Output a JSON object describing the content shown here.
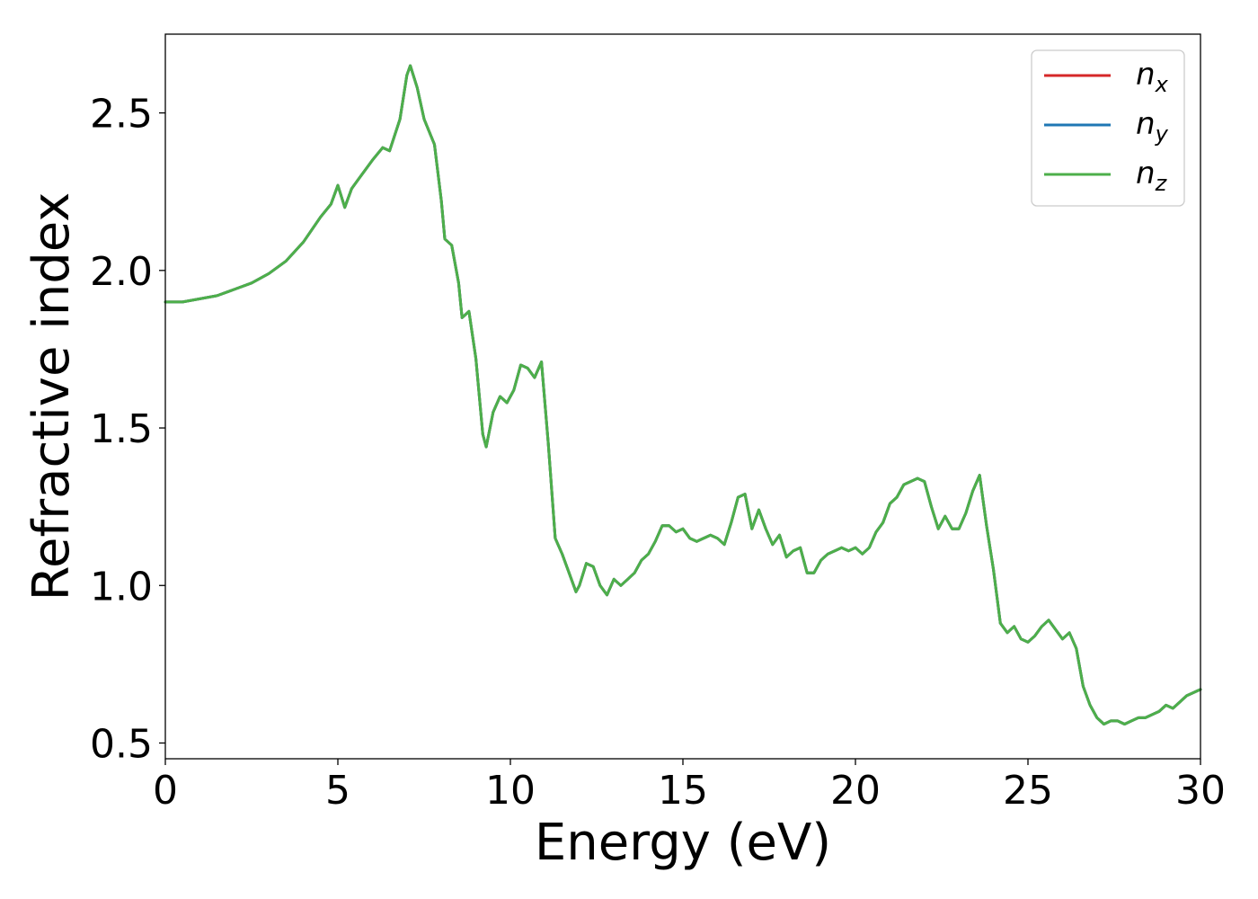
{
  "chart_data": {
    "type": "line",
    "xlabel": "Energy (eV)",
    "ylabel": "Refractive index",
    "xlim": [
      0,
      30
    ],
    "ylim": [
      0.45,
      2.75
    ],
    "xticks": [
      0,
      5,
      10,
      15,
      20,
      25,
      30
    ],
    "xtick_labels": [
      "0",
      "5",
      "10",
      "15",
      "20",
      "25",
      "30"
    ],
    "yticks": [
      0.5,
      1.0,
      1.5,
      2.0,
      2.5
    ],
    "ytick_labels": [
      "0.5",
      "1.0",
      "1.5",
      "2.0",
      "2.5"
    ],
    "grid": false,
    "legend_position": "top-right",
    "series": [
      {
        "name": "n",
        "subscript": "x",
        "color": "#d62728"
      },
      {
        "name": "n",
        "subscript": "y",
        "color": "#1f77b4"
      },
      {
        "name": "n",
        "subscript": "z",
        "color": "#4daf4a"
      }
    ],
    "x": [
      0,
      0.5,
      1,
      1.5,
      2,
      2.5,
      3,
      3.5,
      4,
      4.5,
      4.8,
      5.0,
      5.2,
      5.4,
      5.6,
      6.0,
      6.3,
      6.5,
      6.8,
      7.0,
      7.1,
      7.3,
      7.5,
      7.8,
      8.0,
      8.1,
      8.3,
      8.5,
      8.6,
      8.8,
      9.0,
      9.2,
      9.3,
      9.5,
      9.7,
      9.9,
      10.1,
      10.3,
      10.5,
      10.7,
      10.9,
      11.1,
      11.3,
      11.5,
      11.7,
      11.9,
      12.0,
      12.2,
      12.4,
      12.6,
      12.8,
      13.0,
      13.2,
      13.4,
      13.6,
      13.8,
      14.0,
      14.2,
      14.4,
      14.6,
      14.8,
      15.0,
      15.2,
      15.4,
      15.6,
      15.8,
      16.0,
      16.2,
      16.4,
      16.6,
      16.8,
      17.0,
      17.2,
      17.4,
      17.6,
      17.8,
      18.0,
      18.2,
      18.4,
      18.6,
      18.8,
      19.0,
      19.2,
      19.4,
      19.6,
      19.8,
      20.0,
      20.2,
      20.4,
      20.6,
      20.8,
      21.0,
      21.2,
      21.4,
      21.6,
      21.8,
      22.0,
      22.2,
      22.4,
      22.6,
      22.8,
      23.0,
      23.2,
      23.4,
      23.6,
      23.8,
      24.0,
      24.2,
      24.4,
      24.6,
      24.8,
      25.0,
      25.2,
      25.4,
      25.6,
      25.8,
      26.0,
      26.2,
      26.4,
      26.6,
      26.8,
      27.0,
      27.2,
      27.4,
      27.6,
      27.8,
      28.0,
      28.2,
      28.4,
      28.6,
      28.8,
      29.0,
      29.2,
      29.4,
      29.6,
      29.8,
      30.0
    ],
    "y": [
      1.9,
      1.9,
      1.91,
      1.92,
      1.94,
      1.96,
      1.99,
      2.03,
      2.09,
      2.17,
      2.21,
      2.27,
      2.2,
      2.26,
      2.29,
      2.35,
      2.39,
      2.38,
      2.48,
      2.62,
      2.65,
      2.58,
      2.48,
      2.4,
      2.22,
      2.1,
      2.08,
      1.96,
      1.85,
      1.87,
      1.72,
      1.48,
      1.44,
      1.55,
      1.6,
      1.58,
      1.62,
      1.7,
      1.69,
      1.66,
      1.71,
      1.45,
      1.15,
      1.1,
      1.04,
      0.98,
      1.0,
      1.07,
      1.06,
      1.0,
      0.97,
      1.02,
      1.0,
      1.02,
      1.04,
      1.08,
      1.1,
      1.14,
      1.19,
      1.19,
      1.17,
      1.18,
      1.15,
      1.14,
      1.15,
      1.16,
      1.15,
      1.13,
      1.2,
      1.28,
      1.29,
      1.18,
      1.24,
      1.18,
      1.13,
      1.16,
      1.09,
      1.11,
      1.12,
      1.04,
      1.04,
      1.08,
      1.1,
      1.11,
      1.12,
      1.11,
      1.12,
      1.1,
      1.12,
      1.17,
      1.2,
      1.26,
      1.28,
      1.32,
      1.33,
      1.34,
      1.33,
      1.25,
      1.18,
      1.22,
      1.18,
      1.18,
      1.23,
      1.3,
      1.35,
      1.19,
      1.05,
      0.88,
      0.85,
      0.87,
      0.83,
      0.82,
      0.84,
      0.87,
      0.89,
      0.86,
      0.83,
      0.85,
      0.8,
      0.68,
      0.62,
      0.58,
      0.56,
      0.57,
      0.57,
      0.56,
      0.57,
      0.58,
      0.58,
      0.59,
      0.6,
      0.62,
      0.61,
      0.63,
      0.65,
      0.66,
      0.67
    ]
  }
}
